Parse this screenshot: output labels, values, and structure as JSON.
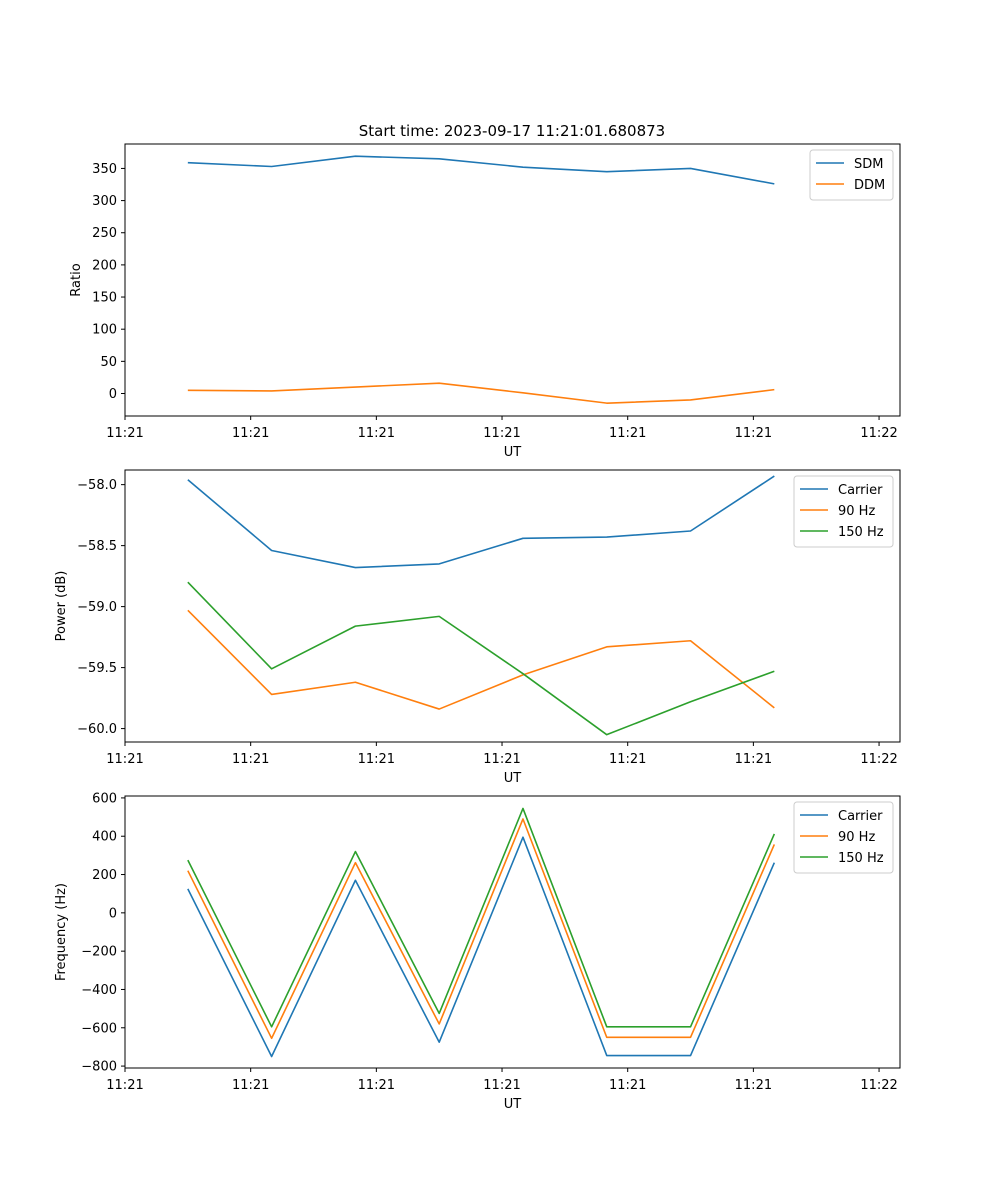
{
  "figure": {
    "title": "Start time: 2023-09-17 11:21:01.680873"
  },
  "chart_data": [
    {
      "type": "line",
      "title": "Start time: 2023-09-17 11:21:01.680873",
      "xlabel": "UT",
      "ylabel": "Ratio",
      "x": [
        0,
        1,
        2,
        3,
        4,
        5,
        6,
        7
      ],
      "xlim": [
        -0.75,
        8.5
      ],
      "x_ticks": [
        -0.75,
        0.75,
        2.25,
        3.75,
        5.25,
        6.75,
        8.25
      ],
      "x_tick_labels": [
        "11:21",
        "11:21",
        "11:21",
        "11:21",
        "11:21",
        "11:21",
        "11:22"
      ],
      "ylim": [
        -35,
        388
      ],
      "y_ticks": [
        0,
        50,
        100,
        150,
        200,
        250,
        300,
        350
      ],
      "y_tick_labels": [
        "0",
        "50",
        "100",
        "150",
        "200",
        "250",
        "300",
        "350"
      ],
      "legend_position": "top-right",
      "series": [
        {
          "name": "SDM",
          "color": "#1f77b4",
          "values": [
            359,
            353,
            369,
            365,
            352,
            345,
            350,
            326
          ]
        },
        {
          "name": "DDM",
          "color": "#ff7f0e",
          "values": [
            5,
            4,
            10,
            16,
            1,
            -15,
            -10,
            6
          ]
        }
      ]
    },
    {
      "type": "line",
      "title": "",
      "xlabel": "UT",
      "ylabel": "Power (dB)",
      "x": [
        0,
        1,
        2,
        3,
        4,
        5,
        6,
        7
      ],
      "xlim": [
        -0.75,
        8.5
      ],
      "x_ticks": [
        -0.75,
        0.75,
        2.25,
        3.75,
        5.25,
        6.75,
        8.25
      ],
      "x_tick_labels": [
        "11:21",
        "11:21",
        "11:21",
        "11:21",
        "11:21",
        "11:21",
        "11:22"
      ],
      "ylim": [
        -60.11,
        -57.88
      ],
      "y_ticks": [
        -58.0,
        -58.5,
        -59.0,
        -59.5,
        -60.0
      ],
      "y_tick_labels": [
        "−58.0",
        "−58.5",
        "−59.0",
        "−59.5",
        "−60.0"
      ],
      "legend_position": "top-right",
      "series": [
        {
          "name": "Carrier",
          "color": "#1f77b4",
          "values": [
            -57.96,
            -58.54,
            -58.68,
            -58.65,
            -58.44,
            -58.43,
            -58.38,
            -57.93
          ]
        },
        {
          "name": "90 Hz",
          "color": "#ff7f0e",
          "values": [
            -59.03,
            -59.72,
            -59.62,
            -59.84,
            -59.56,
            -59.33,
            -59.28,
            -59.83
          ]
        },
        {
          "name": "150 Hz",
          "color": "#2ca02c",
          "values": [
            -58.8,
            -59.51,
            -59.16,
            -59.08,
            -59.55,
            -60.05,
            -59.78,
            -59.53
          ]
        }
      ]
    },
    {
      "type": "line",
      "title": "",
      "xlabel": "UT",
      "ylabel": "Frequency (Hz)",
      "x": [
        0,
        1,
        2,
        3,
        4,
        5,
        6,
        7
      ],
      "xlim": [
        -0.75,
        8.5
      ],
      "x_ticks": [
        -0.75,
        0.75,
        2.25,
        3.75,
        5.25,
        6.75,
        8.25
      ],
      "x_tick_labels": [
        "11:21",
        "11:21",
        "11:21",
        "11:21",
        "11:21",
        "11:21",
        "11:22"
      ],
      "ylim": [
        -810,
        610
      ],
      "y_ticks": [
        600,
        400,
        200,
        0,
        -200,
        -400,
        -600,
        -800
      ],
      "y_tick_labels": [
        "600",
        "400",
        "200",
        "0",
        "−200",
        "−400",
        "−600",
        "−800"
      ],
      "legend_position": "top-right",
      "series": [
        {
          "name": "Carrier",
          "color": "#1f77b4",
          "values": [
            125,
            -750,
            170,
            -675,
            395,
            -745,
            -745,
            262
          ]
        },
        {
          "name": "90 Hz",
          "color": "#ff7f0e",
          "values": [
            220,
            -655,
            262,
            -580,
            490,
            -650,
            -650,
            357
          ]
        },
        {
          "name": "150 Hz",
          "color": "#2ca02c",
          "values": [
            275,
            -595,
            320,
            -525,
            545,
            -595,
            -595,
            412
          ]
        }
      ]
    }
  ]
}
